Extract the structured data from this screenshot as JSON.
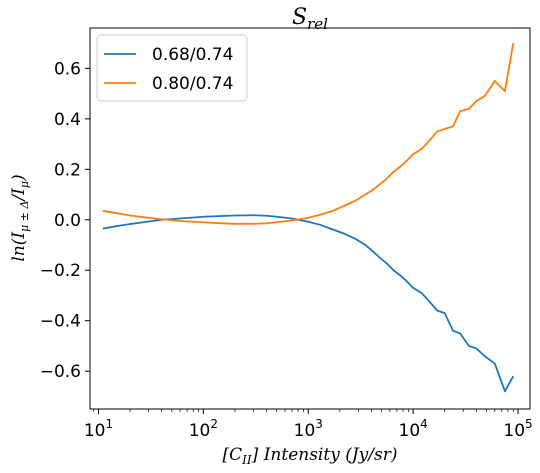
{
  "chart_data": {
    "type": "line",
    "title": "S",
    "title_sub": "rel",
    "xlabel": "[C",
    "xlabel_sub": "II",
    "xlabel_rest": "] Intensity (Jy/sr)",
    "ylabel": "ln(I",
    "ylabel_sub": "μ ± Δ",
    "ylabel_mid": "/I",
    "ylabel_sub2": "μ",
    "ylabel_end": ")",
    "xscale": "log",
    "xlim": [
      8.3,
      130000
    ],
    "ylim": [
      -0.75,
      0.76
    ],
    "xticks": [
      {
        "value": 10,
        "base": "10",
        "exp": "1"
      },
      {
        "value": 100,
        "base": "10",
        "exp": "2"
      },
      {
        "value": 1000,
        "base": "10",
        "exp": "3"
      },
      {
        "value": 10000,
        "base": "10",
        "exp": "4"
      },
      {
        "value": 100000,
        "base": "10",
        "exp": "5"
      }
    ],
    "yticks": [
      {
        "value": -0.6,
        "label": "−0.6"
      },
      {
        "value": -0.4,
        "label": "−0.4"
      },
      {
        "value": -0.2,
        "label": "−0.2"
      },
      {
        "value": 0.0,
        "label": "0.0"
      },
      {
        "value": 0.2,
        "label": "0.2"
      },
      {
        "value": 0.4,
        "label": "0.4"
      },
      {
        "value": 0.6,
        "label": "0.6"
      }
    ],
    "legend_position": "top-left",
    "series": [
      {
        "name": "0.68/0.74",
        "color": "#1f77b4",
        "points": [
          [
            11,
            -0.035
          ],
          [
            15,
            -0.025
          ],
          [
            20,
            -0.017
          ],
          [
            30,
            -0.007
          ],
          [
            40,
            0.0
          ],
          [
            60,
            0.005
          ],
          [
            100,
            0.012
          ],
          [
            150,
            0.015
          ],
          [
            200,
            0.017
          ],
          [
            300,
            0.018
          ],
          [
            400,
            0.016
          ],
          [
            500,
            0.012
          ],
          [
            700,
            0.005
          ],
          [
            1000,
            -0.008
          ],
          [
            1300,
            -0.02
          ],
          [
            1700,
            -0.038
          ],
          [
            2200,
            -0.055
          ],
          [
            2800,
            -0.075
          ],
          [
            3500,
            -0.1
          ],
          [
            4000,
            -0.12
          ],
          [
            4800,
            -0.15
          ],
          [
            5500,
            -0.17
          ],
          [
            6500,
            -0.2
          ],
          [
            7500,
            -0.22
          ],
          [
            8500,
            -0.24
          ],
          [
            10000,
            -0.27
          ],
          [
            12000,
            -0.29
          ],
          [
            14000,
            -0.32
          ],
          [
            17000,
            -0.36
          ],
          [
            20000,
            -0.37
          ],
          [
            24000,
            -0.44
          ],
          [
            28000,
            -0.45
          ],
          [
            34000,
            -0.5
          ],
          [
            40000,
            -0.51
          ],
          [
            48000,
            -0.54
          ],
          [
            60000,
            -0.57
          ],
          [
            75000,
            -0.68
          ],
          [
            90000,
            -0.62
          ]
        ]
      },
      {
        "name": "0.80/0.74",
        "color": "#ff7f0e",
        "points": [
          [
            11,
            0.035
          ],
          [
            15,
            0.026
          ],
          [
            20,
            0.017
          ],
          [
            30,
            0.008
          ],
          [
            40,
            0.002
          ],
          [
            60,
            -0.005
          ],
          [
            100,
            -0.01
          ],
          [
            150,
            -0.014
          ],
          [
            200,
            -0.016
          ],
          [
            300,
            -0.016
          ],
          [
            400,
            -0.014
          ],
          [
            500,
            -0.01
          ],
          [
            700,
            -0.003
          ],
          [
            1000,
            0.008
          ],
          [
            1300,
            0.02
          ],
          [
            1700,
            0.035
          ],
          [
            2200,
            0.055
          ],
          [
            2800,
            0.075
          ],
          [
            3500,
            0.1
          ],
          [
            4000,
            0.115
          ],
          [
            4800,
            0.14
          ],
          [
            5500,
            0.16
          ],
          [
            6500,
            0.19
          ],
          [
            7500,
            0.21
          ],
          [
            8500,
            0.23
          ],
          [
            10000,
            0.26
          ],
          [
            12000,
            0.28
          ],
          [
            14000,
            0.31
          ],
          [
            17000,
            0.35
          ],
          [
            20000,
            0.36
          ],
          [
            24000,
            0.37
          ],
          [
            28000,
            0.43
          ],
          [
            34000,
            0.44
          ],
          [
            40000,
            0.47
          ],
          [
            48000,
            0.49
          ],
          [
            60000,
            0.55
          ],
          [
            75000,
            0.51
          ],
          [
            90000,
            0.7
          ]
        ]
      }
    ]
  }
}
